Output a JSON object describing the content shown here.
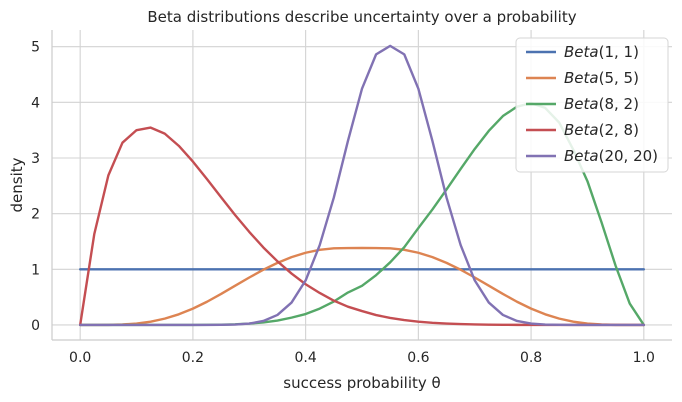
{
  "chart_data": {
    "type": "line",
    "title": "Beta distributions describe uncertainty over a probability",
    "xlabel": "success probability θ",
    "ylabel": "density",
    "xlim": [
      -0.05,
      1.05
    ],
    "ylim": [
      -0.27,
      5.3
    ],
    "xticks": [
      0.0,
      0.2,
      0.4,
      0.6,
      0.8,
      1.0
    ],
    "xtick_labels": [
      "0.0",
      "0.2",
      "0.4",
      "0.6",
      "0.8",
      "1.0"
    ],
    "yticks": [
      0,
      1,
      2,
      3,
      4,
      5
    ],
    "ytick_labels": [
      "0",
      "1",
      "2",
      "3",
      "4",
      "5"
    ],
    "grid": true,
    "legend_position": "top-right",
    "x": [
      0.0,
      0.025,
      0.05,
      0.075,
      0.1,
      0.125,
      0.15,
      0.175,
      0.2,
      0.225,
      0.25,
      0.275,
      0.3,
      0.325,
      0.35,
      0.375,
      0.4,
      0.425,
      0.45,
      0.475,
      0.5,
      0.525,
      0.55,
      0.575,
      0.6,
      0.625,
      0.65,
      0.675,
      0.7,
      0.725,
      0.75,
      0.775,
      0.8,
      0.825,
      0.85,
      0.875,
      0.9,
      0.925,
      0.95,
      0.975,
      1.0
    ],
    "series": [
      {
        "name": "Beta(1, 1)",
        "label_text": "Beta",
        "label_params": "(1, 1)",
        "color": "#4c72b0",
        "values": [
          1.0,
          1.0,
          1.0,
          1.0,
          1.0,
          1.0,
          1.0,
          1.0,
          1.0,
          1.0,
          1.0,
          1.0,
          1.0,
          1.0,
          1.0,
          1.0,
          1.0,
          1.0,
          1.0,
          1.0,
          1.0,
          1.0,
          1.0,
          1.0,
          1.0,
          1.0,
          1.0,
          1.0,
          1.0,
          1.0,
          1.0,
          1.0,
          1.0,
          1.0,
          1.0,
          1.0,
          1.0,
          1.0,
          1.0,
          1.0,
          1.0
        ]
      },
      {
        "name": "Beta(5, 5)",
        "label_text": "Beta",
        "label_params": "(5, 5)",
        "color": "#dd8452",
        "values": [
          0.0,
          0.0001,
          0.0018,
          0.0087,
          0.0262,
          0.0597,
          0.1139,
          0.1917,
          0.2936,
          0.4174,
          0.5576,
          0.7062,
          0.8532,
          0.9921,
          1.1156,
          1.2187,
          1.2979,
          1.3508,
          1.3765,
          1.3815,
          1.3828,
          1.3815,
          1.3765,
          1.3508,
          1.2979,
          1.2187,
          1.1156,
          0.9921,
          0.8532,
          0.7062,
          0.5576,
          0.4174,
          0.2936,
          0.1917,
          0.1139,
          0.0597,
          0.0262,
          0.0087,
          0.0018,
          0.0001,
          0.0
        ]
      },
      {
        "name": "Beta(8, 2)",
        "label_text": "Beta",
        "label_params": "(8, 2)",
        "color": "#55a868",
        "values": [
          0.0,
          0.0,
          0.0,
          0.0,
          0.0,
          0.0,
          0.0001,
          0.0002,
          0.0009,
          0.0023,
          0.0055,
          0.0118,
          0.0245,
          0.0454,
          0.0795,
          0.132,
          0.1966,
          0.2948,
          0.4209,
          0.5826,
          0.7031,
          0.8949,
          1.1258,
          1.3981,
          1.7418,
          2.0763,
          2.4354,
          2.8036,
          3.1624,
          3.4884,
          3.7538,
          3.9226,
          3.9867,
          3.9003,
          3.6356,
          3.1462,
          2.5833,
          1.8442,
          1.0617,
          0.3846,
          0.0
        ]
      },
      {
        "name": "Beta(2, 8)",
        "label_text": "Beta",
        "label_params": "(2, 8)",
        "color": "#c44e52",
        "values": [
          0.0,
          1.6323,
          2.6878,
          3.2755,
          3.5004,
          3.5464,
          3.4377,
          3.2182,
          2.936,
          2.6206,
          2.2942,
          1.9735,
          1.6725,
          1.3923,
          1.1437,
          0.9236,
          0.7318,
          0.5751,
          0.4372,
          0.3284,
          0.25,
          0.1784,
          0.1262,
          0.0878,
          0.0597,
          0.0393,
          0.0253,
          0.016,
          0.0098,
          0.0059,
          0.0034,
          0.0018,
          0.0009,
          0.0004,
          0.0002,
          0.0001,
          0.0,
          0.0,
          0.0,
          0.0,
          0.0
        ]
      },
      {
        "name": "Beta(20, 20)",
        "label_text": "Beta",
        "label_params": "(20, 20)",
        "color": "#8172b3",
        "values": [
          0.0,
          0.0,
          0.0,
          0.0,
          0.0,
          0.0,
          0.0,
          0.0,
          0.0,
          0.0006,
          0.0021,
          0.0077,
          0.0245,
          0.0715,
          0.1803,
          0.4028,
          0.8011,
          1.4362,
          2.2898,
          3.3051,
          4.2456,
          4.8618,
          5.015,
          4.8618,
          4.2456,
          3.3051,
          2.2898,
          1.4362,
          0.8011,
          0.4028,
          0.1803,
          0.0715,
          0.0245,
          0.0077,
          0.0021,
          0.0006,
          0.0,
          0.0,
          0.0,
          0.0,
          0.0
        ]
      }
    ]
  }
}
